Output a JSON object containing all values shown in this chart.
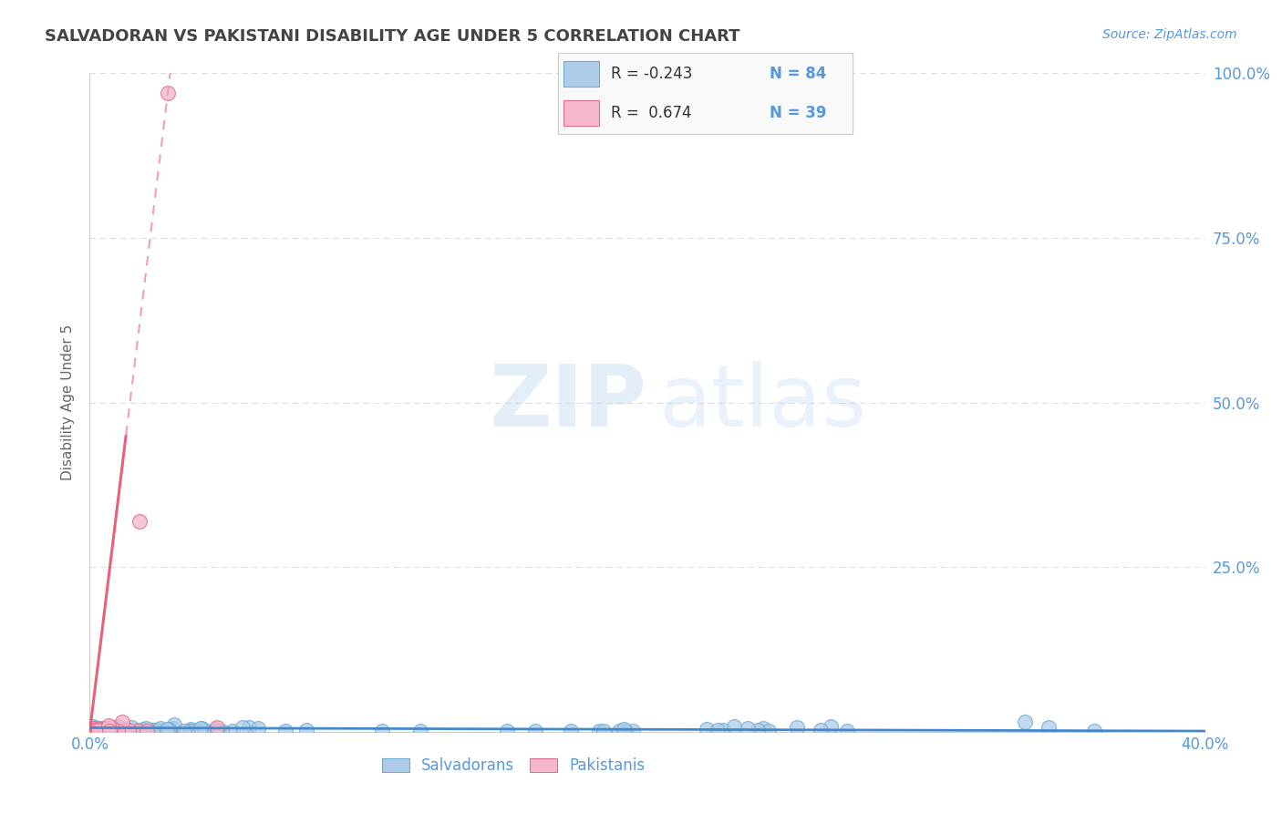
{
  "title": "SALVADORAN VS PAKISTANI DISABILITY AGE UNDER 5 CORRELATION CHART",
  "source": "Source: ZipAtlas.com",
  "ylabel": "Disability Age Under 5",
  "salvadoran_color": "#aecce8",
  "salvadoran_edge": "#6aaad4",
  "pakistani_color": "#f5b8cb",
  "pakistani_edge": "#e07090",
  "trend_blue_color": "#4488cc",
  "trend_pink_color": "#e8607a",
  "trend_dashed_color": "#f0a0b0",
  "background_color": "#ffffff",
  "title_color": "#444444",
  "axis_color": "#5599dd",
  "grid_color": "#dddddd",
  "xlim": [
    0.0,
    0.4
  ],
  "ylim": [
    0.0,
    1.0
  ],
  "right_yticks": [
    1.0,
    0.75,
    0.5,
    0.25
  ],
  "right_yticklabels": [
    "100.0%",
    "75.0%",
    "50.0%",
    "25.0%"
  ],
  "legend_r1": "R = -0.243",
  "legend_n1": "N = 84",
  "legend_r2": "R =  0.674",
  "legend_n2": "N = 39",
  "watermark_zip": "ZIP",
  "watermark_atlas": "atlas"
}
